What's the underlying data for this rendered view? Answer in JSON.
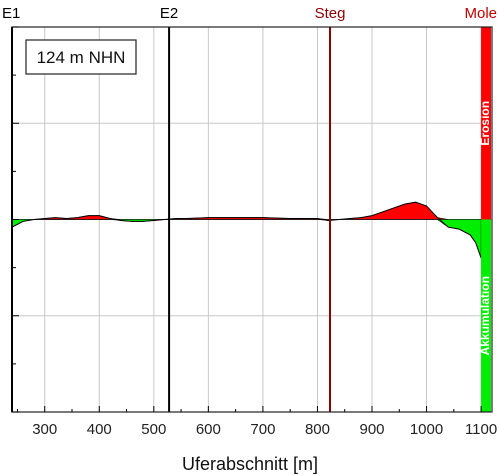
{
  "chart_data": {
    "type": "area",
    "elevation_label": "124 m NHN",
    "xlabel": "Uferabschnitt [m]",
    "ylabel": "",
    "xlim": [
      240,
      1120
    ],
    "ylim": [
      -1,
      1
    ],
    "x_ticks": [
      300,
      400,
      500,
      600,
      700,
      800,
      900,
      1000,
      1100
    ],
    "grid": true,
    "colors": {
      "erosion": "#ff0000",
      "accumulation": "#00ee00",
      "steg": "#8b0000",
      "mole": "#c00000",
      "marker": "#000000"
    },
    "markers": [
      {
        "label": "E1",
        "x": 240,
        "color": "#000000"
      },
      {
        "label": "E2",
        "x": 528,
        "color": "#000000"
      },
      {
        "label": "Steg",
        "x": 823,
        "color": "#8b0000"
      },
      {
        "label": "Mole",
        "x": 1100,
        "color": "#c00000"
      }
    ],
    "bands": [
      {
        "label": "Erosion",
        "color": "#ff0000",
        "from": 0,
        "to": 1
      },
      {
        "label": "Akkumulation",
        "color": "#00ee00",
        "from": -1,
        "to": 0
      }
    ],
    "series": [
      {
        "x": [
          240,
          260,
          280,
          300,
          320,
          340,
          360,
          380,
          400,
          420,
          440,
          460,
          480,
          500,
          520,
          540,
          560,
          600,
          650,
          700,
          750,
          800,
          820,
          840,
          860,
          880,
          900,
          920,
          940,
          960,
          980,
          1000,
          1020,
          1040,
          1060,
          1080,
          1090,
          1100
        ],
        "values": [
          -0.04,
          -0.01,
          0.0,
          0.005,
          0.01,
          0.005,
          0.01,
          0.02,
          0.02,
          0.005,
          -0.005,
          -0.01,
          -0.01,
          -0.005,
          0.0,
          0.005,
          0.005,
          0.01,
          0.01,
          0.01,
          0.005,
          0.005,
          -0.005,
          0.0,
          0.005,
          0.01,
          0.02,
          0.04,
          0.06,
          0.08,
          0.09,
          0.07,
          0.01,
          -0.04,
          -0.05,
          -0.08,
          -0.12,
          -0.2
        ]
      }
    ]
  }
}
